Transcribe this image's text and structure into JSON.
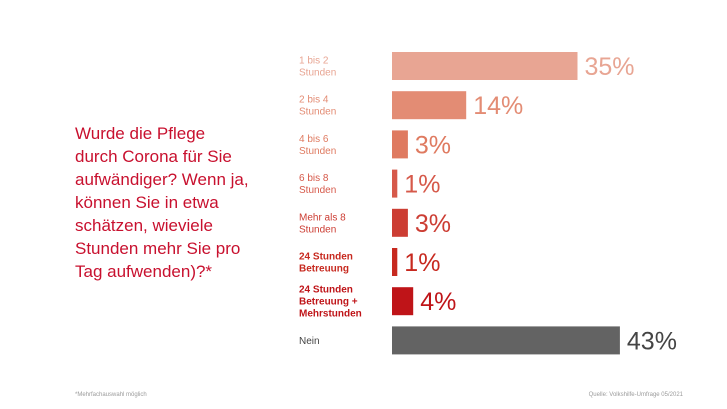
{
  "question": "Wurde die Pflege\ndurch Corona für Sie\naufwändiger? Wenn ja,\nkönnen Sie in etwa\nschätzen, wieviele\nStunden mehr Sie pro\nTag aufwenden)?*",
  "footnote": "*Mehrfachauswahl möglich",
  "source": "Quelle: Volkshilfe-Umfrage 05/2021",
  "chart_data": {
    "type": "bar",
    "orientation": "horizontal",
    "title": "",
    "xlabel": "",
    "ylabel": "",
    "xlim": [
      0,
      50
    ],
    "grid": false,
    "legend": "none",
    "categories": [
      "1 bis 2\nStunden",
      "2 bis 4\nStunden",
      "4 bis 6\nStunden",
      "6 bis 8\nStunden",
      "Mehr als 8\nStunden",
      "24 Stunden\nBetreuung",
      "24 Stunden\nBetreuung +\nMehrstunden",
      "Nein"
    ],
    "values": [
      35,
      14,
      3,
      1,
      3,
      1,
      4,
      43
    ],
    "value_labels": [
      "35%",
      "14%",
      "3%",
      "1%",
      "3%",
      "1%",
      "4%",
      "43%"
    ],
    "colors": [
      "#e8a593",
      "#e38c74",
      "#df7a60",
      "#d6594a",
      "#cc3d33",
      "#c7291f",
      "#bf1418",
      "#636363"
    ],
    "label_colors": [
      "#e8a593",
      "#e38c74",
      "#df7a60",
      "#d6594a",
      "#cc3d33",
      "#c7291f",
      "#bf1418",
      "#444444"
    ],
    "category_bold": [
      false,
      false,
      false,
      false,
      false,
      true,
      true,
      false
    ]
  }
}
